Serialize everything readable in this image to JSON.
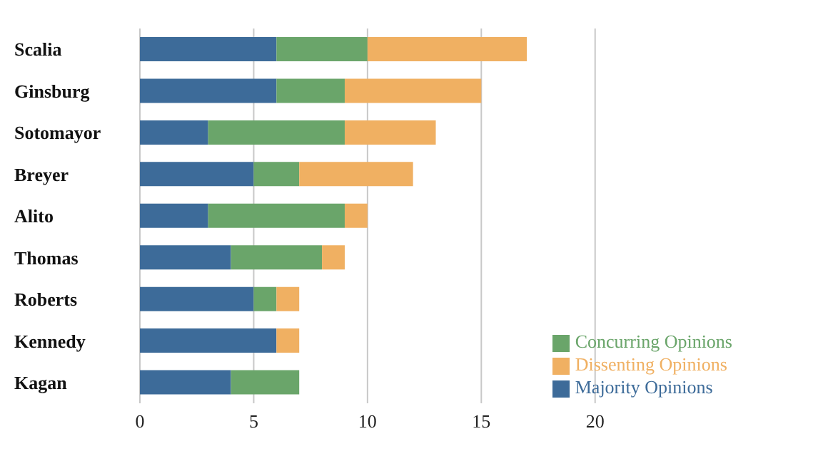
{
  "chart_data": {
    "type": "bar",
    "orientation": "horizontal",
    "stacked": true,
    "categories": [
      "Scalia",
      "Ginsburg",
      "Sotomayor",
      "Breyer",
      "Alito",
      "Thomas",
      "Roberts",
      "Kennedy",
      "Kagan"
    ],
    "series": [
      {
        "name": "Majority Opinions",
        "color": "#3d6b99",
        "values": [
          6,
          6,
          3,
          5,
          3,
          4,
          5,
          6,
          4
        ]
      },
      {
        "name": "Concurring Opinions",
        "color": "#6aa56a",
        "values": [
          4,
          3,
          6,
          2,
          6,
          4,
          1,
          0,
          3
        ]
      },
      {
        "name": "Dissenting Opinions",
        "color": "#f0b062",
        "values": [
          7,
          6,
          4,
          5,
          1,
          1,
          1,
          1,
          0
        ]
      }
    ],
    "xlim": [
      0,
      20
    ],
    "xticks": [
      0,
      5,
      10,
      15,
      20
    ],
    "grid": "x",
    "legend": "bottom right"
  }
}
